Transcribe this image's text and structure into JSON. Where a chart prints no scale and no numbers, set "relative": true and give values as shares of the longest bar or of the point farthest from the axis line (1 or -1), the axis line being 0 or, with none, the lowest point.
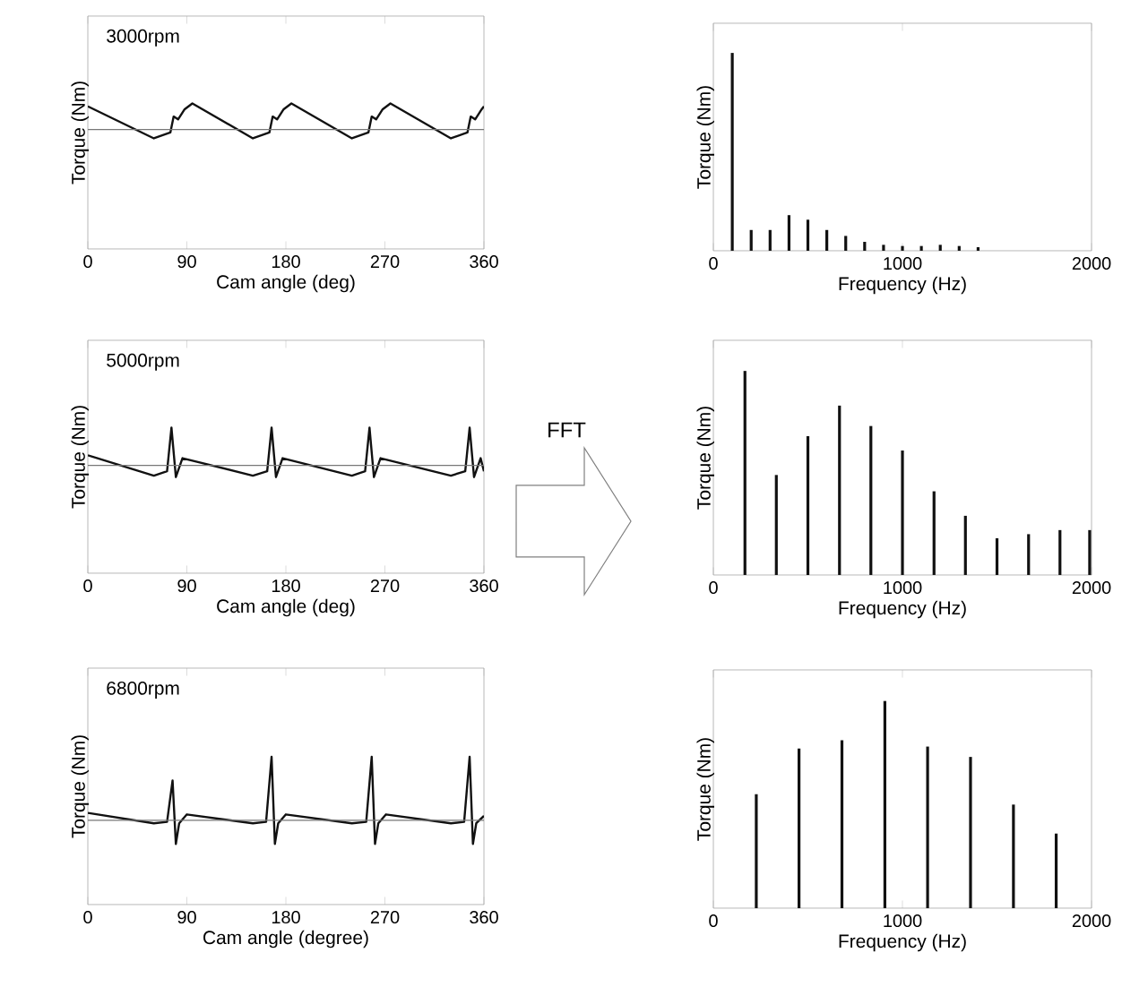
{
  "chart_data": [
    {
      "type": "line",
      "title": "3000rpm",
      "xlabel": "Cam angle (deg)",
      "ylabel": "Torque (Nm)",
      "relative": true,
      "tick_labels": "x",
      "xlim": [
        0,
        360
      ],
      "xticks": [
        0,
        90,
        180,
        270,
        360
      ],
      "series": [
        {
          "color": "#111111",
          "x": [
            0,
            60,
            75,
            78,
            82,
            88,
            95,
            150,
            165,
            168,
            172,
            178,
            185,
            240,
            255,
            258,
            262,
            268,
            275,
            330,
            345,
            348,
            352,
            358,
            360
          ],
          "values": [
            0.98,
            0.76,
            0.8,
            0.91,
            0.89,
            0.96,
            1,
            0.76,
            0.8,
            0.91,
            0.89,
            0.96,
            1,
            0.76,
            0.8,
            0.91,
            0.89,
            0.96,
            1,
            0.76,
            0.8,
            0.91,
            0.89,
            0.96,
            0.98
          ]
        },
        {
          "color": "#777777",
          "x": [
            0,
            360
          ],
          "values": [
            0.82,
            0.82
          ]
        }
      ]
    },
    {
      "type": "line",
      "title": "5000rpm",
      "xlabel": "Cam angle (deg)",
      "ylabel": "Torque (Nm)",
      "relative": true,
      "tick_labels": "x",
      "xlim": [
        0,
        360
      ],
      "xticks": [
        0,
        90,
        180,
        270,
        360
      ],
      "annotations": [
        "FFT"
      ],
      "series": [
        {
          "color": "#111111",
          "x": [
            0,
            60,
            72,
            76,
            80,
            86,
            150,
            163,
            167,
            171,
            177,
            240,
            252,
            256,
            260,
            266,
            330,
            343,
            347,
            351,
            357,
            360
          ],
          "values": [
            0.81,
            0.67,
            0.7,
            1,
            0.66,
            0.79,
            0.67,
            0.7,
            1,
            0.66,
            0.79,
            0.67,
            0.7,
            1,
            0.66,
            0.79,
            0.67,
            0.7,
            1,
            0.66,
            0.79,
            0.7
          ]
        },
        {
          "color": "#777777",
          "x": [
            0,
            360
          ],
          "values": [
            0.74,
            0.74
          ]
        }
      ]
    },
    {
      "type": "line",
      "title": "6800rpm",
      "xlabel": "Cam angle (degree)",
      "ylabel": "Torque (Nm)",
      "relative": true,
      "tick_labels": "x",
      "xlim": [
        0,
        360
      ],
      "xticks": [
        0,
        90,
        180,
        270,
        360
      ],
      "series": [
        {
          "color": "#111111",
          "x": [
            0,
            60,
            72,
            77,
            80,
            83,
            90,
            150,
            162,
            167,
            170,
            173,
            180,
            240,
            253,
            258,
            261,
            264,
            271,
            330,
            342,
            347,
            350,
            353,
            360
          ],
          "values": [
            0.62,
            0.55,
            0.56,
            0.84,
            0.41,
            0.55,
            0.61,
            0.55,
            0.56,
            1,
            0.41,
            0.55,
            0.61,
            0.55,
            0.56,
            1,
            0.41,
            0.55,
            0.61,
            0.55,
            0.56,
            1,
            0.41,
            0.55,
            0.6
          ]
        },
        {
          "color": "#777777",
          "x": [
            0,
            360
          ],
          "values": [
            0.57,
            0.57
          ]
        }
      ]
    },
    {
      "type": "bar",
      "xlabel": "Frequency (Hz)",
      "ylabel": "Torque (Nm)",
      "relative": true,
      "tick_labels": "x",
      "xlim": [
        0,
        2000
      ],
      "xticks": [
        0,
        1000,
        2000
      ],
      "series": [
        {
          "color": "#111111",
          "x": [
            100,
            200,
            300,
            400,
            500,
            600,
            700,
            800,
            900,
            1000,
            1100,
            1200,
            1300,
            1400
          ],
          "values": [
            1,
            0.105,
            0.105,
            0.18,
            0.157,
            0.105,
            0.075,
            0.045,
            0.03,
            0.024,
            0.024,
            0.03,
            0.024,
            0.018
          ]
        }
      ]
    },
    {
      "type": "bar",
      "xlabel": "Frequency (Hz)",
      "ylabel": "Torque (Nm)",
      "relative": true,
      "tick_labels": "x",
      "xlim": [
        0,
        2000
      ],
      "xticks": [
        0,
        1000,
        2000
      ],
      "series": [
        {
          "color": "#111111",
          "x": [
            167,
            333,
            500,
            667,
            833,
            1000,
            1167,
            1333,
            1500,
            1667,
            1833,
            1990
          ],
          "values": [
            1,
            0.49,
            0.68,
            0.83,
            0.73,
            0.61,
            0.41,
            0.29,
            0.18,
            0.2,
            0.22,
            0.22
          ]
        }
      ]
    },
    {
      "type": "bar",
      "xlabel": "Frequency (Hz)",
      "ylabel": "Torque (Nm)",
      "relative": true,
      "tick_labels": "x",
      "xlim": [
        0,
        2000
      ],
      "xticks": [
        0,
        1000,
        2000
      ],
      "series": [
        {
          "color": "#111111",
          "x": [
            227,
            453,
            680,
            907,
            1133,
            1360,
            1587,
            1813
          ],
          "values": [
            0.55,
            0.77,
            0.81,
            1,
            0.78,
            0.73,
            0.5,
            0.36
          ]
        }
      ]
    }
  ]
}
